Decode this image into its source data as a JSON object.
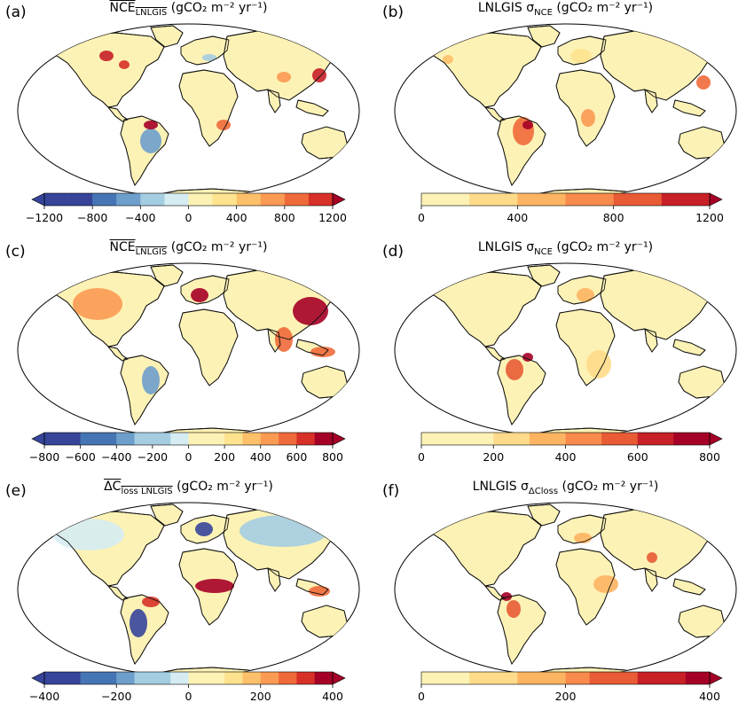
{
  "colors": {
    "ocean": "#ffffff",
    "land_neutral": "#fdf2b5",
    "div_neg": [
      "#36459a",
      "#4575b4",
      "#6e9fcc",
      "#a4cde2",
      "#d6ecf3"
    ],
    "div_pos": [
      "#fdf2b5",
      "#fee38f",
      "#fdc06a",
      "#fb9a53",
      "#ef6a3a",
      "#d73027",
      "#a50026"
    ],
    "seq": [
      "#fdf2b5",
      "#fedb8a",
      "#fdb462",
      "#f88b4c",
      "#e85b35",
      "#c72027",
      "#a50026"
    ]
  },
  "panels": [
    {
      "letter": "(a)",
      "title": {
        "prefix": "",
        "main": "NCE",
        "sub": "LNLGIS",
        "overline": true,
        "unit": "(gCO₂ m⁻² yr⁻¹)"
      },
      "colorbar": {
        "type": "diverging",
        "ticks": [
          "−1200",
          "−800",
          "−400",
          "0",
          "400",
          "800",
          "1200"
        ],
        "nbins": 12
      }
    },
    {
      "letter": "(b)",
      "title": {
        "prefix": "LNLGIS σ",
        "main": "",
        "sub": "NCE",
        "overline": false,
        "unit": "(gCO₂ m⁻² yr⁻¹)"
      },
      "colorbar": {
        "type": "sequential",
        "ticks": [
          "0",
          "400",
          "800",
          "1200"
        ],
        "nbins": 6
      }
    },
    {
      "letter": "(c)",
      "title": {
        "prefix": "",
        "main": "NCE",
        "sub": "LNLGIS",
        "overline": true,
        "unit": "(gCO₂ m⁻² yr⁻¹)"
      },
      "colorbar": {
        "type": "diverging",
        "ticks": [
          "−800",
          "−600",
          "−400",
          "−200",
          "0",
          "200",
          "400",
          "600",
          "800"
        ],
        "nbins": 16
      }
    },
    {
      "letter": "(d)",
      "title": {
        "prefix": "LNLGIS σ",
        "main": "",
        "sub": "NCE",
        "overline": false,
        "unit": "(gCO₂ m⁻² yr⁻¹)"
      },
      "colorbar": {
        "type": "sequential",
        "ticks": [
          "0",
          "200",
          "400",
          "600",
          "800"
        ],
        "nbins": 8
      }
    },
    {
      "letter": "(e)",
      "title": {
        "prefix": "",
        "main": "ΔC",
        "sub": "loss LNLGIS",
        "overline": true,
        "unit": "(gCO₂ m⁻² yr⁻¹)"
      },
      "colorbar": {
        "type": "diverging",
        "ticks": [
          "−400",
          "−200",
          "0",
          "200",
          "400"
        ],
        "nbins": 16
      }
    },
    {
      "letter": "(f)",
      "title": {
        "prefix": "LNLGIS σ",
        "main": "",
        "sub": "ΔCloss",
        "overline": false,
        "unit": "(gCO₂ m⁻² yr⁻¹)"
      },
      "colorbar": {
        "type": "sequential",
        "ticks": [
          "0",
          "200",
          "400"
        ],
        "nbins": 12
      }
    }
  ]
}
